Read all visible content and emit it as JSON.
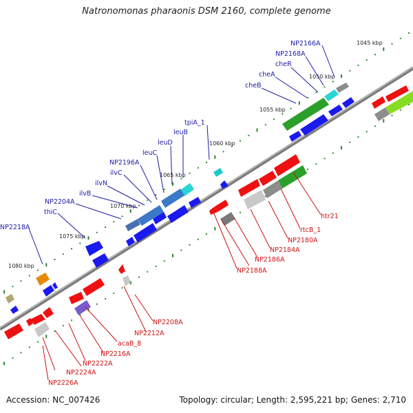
{
  "title": "Natronomonas pharaonis DSM 2160, complete genome",
  "footer": {
    "accession": "Accession: NC_007426",
    "summary": "Topology: circular; Length: 2,595,221 bp; Genes: 2,710"
  },
  "kbp_ticks": [
    "1045 kbp",
    "1050 kbp",
    "1055 kbp",
    "1060 kbp",
    "1065 kbp",
    "1070 kbp",
    "1075 kbp",
    "1080 kbp"
  ],
  "upper_labels": [
    "NP2166A",
    "NP2168A",
    "cheR",
    "cheA",
    "cheB",
    "tpiA_1",
    "leuB",
    "leuD",
    "leuC",
    "NP2196A",
    "ilvC",
    "ilvN",
    "ilvB",
    "NP2204A",
    "thiC",
    "NP2218A"
  ],
  "lower_labels": [
    "htr21",
    "rtcB_1",
    "NP2180A",
    "NP2184A",
    "NP2186A",
    "NP2188A",
    "NP2208A",
    "NP2212A",
    "acaB_8",
    "NP2216A",
    "NP2222A",
    "NP2224A",
    "NP2226A"
  ],
  "colors": {
    "forward_label": "#1a1aa8",
    "reverse_label": "#cc1111",
    "backbone": "#8a8a8a",
    "tick": "#2d8a2d"
  }
}
